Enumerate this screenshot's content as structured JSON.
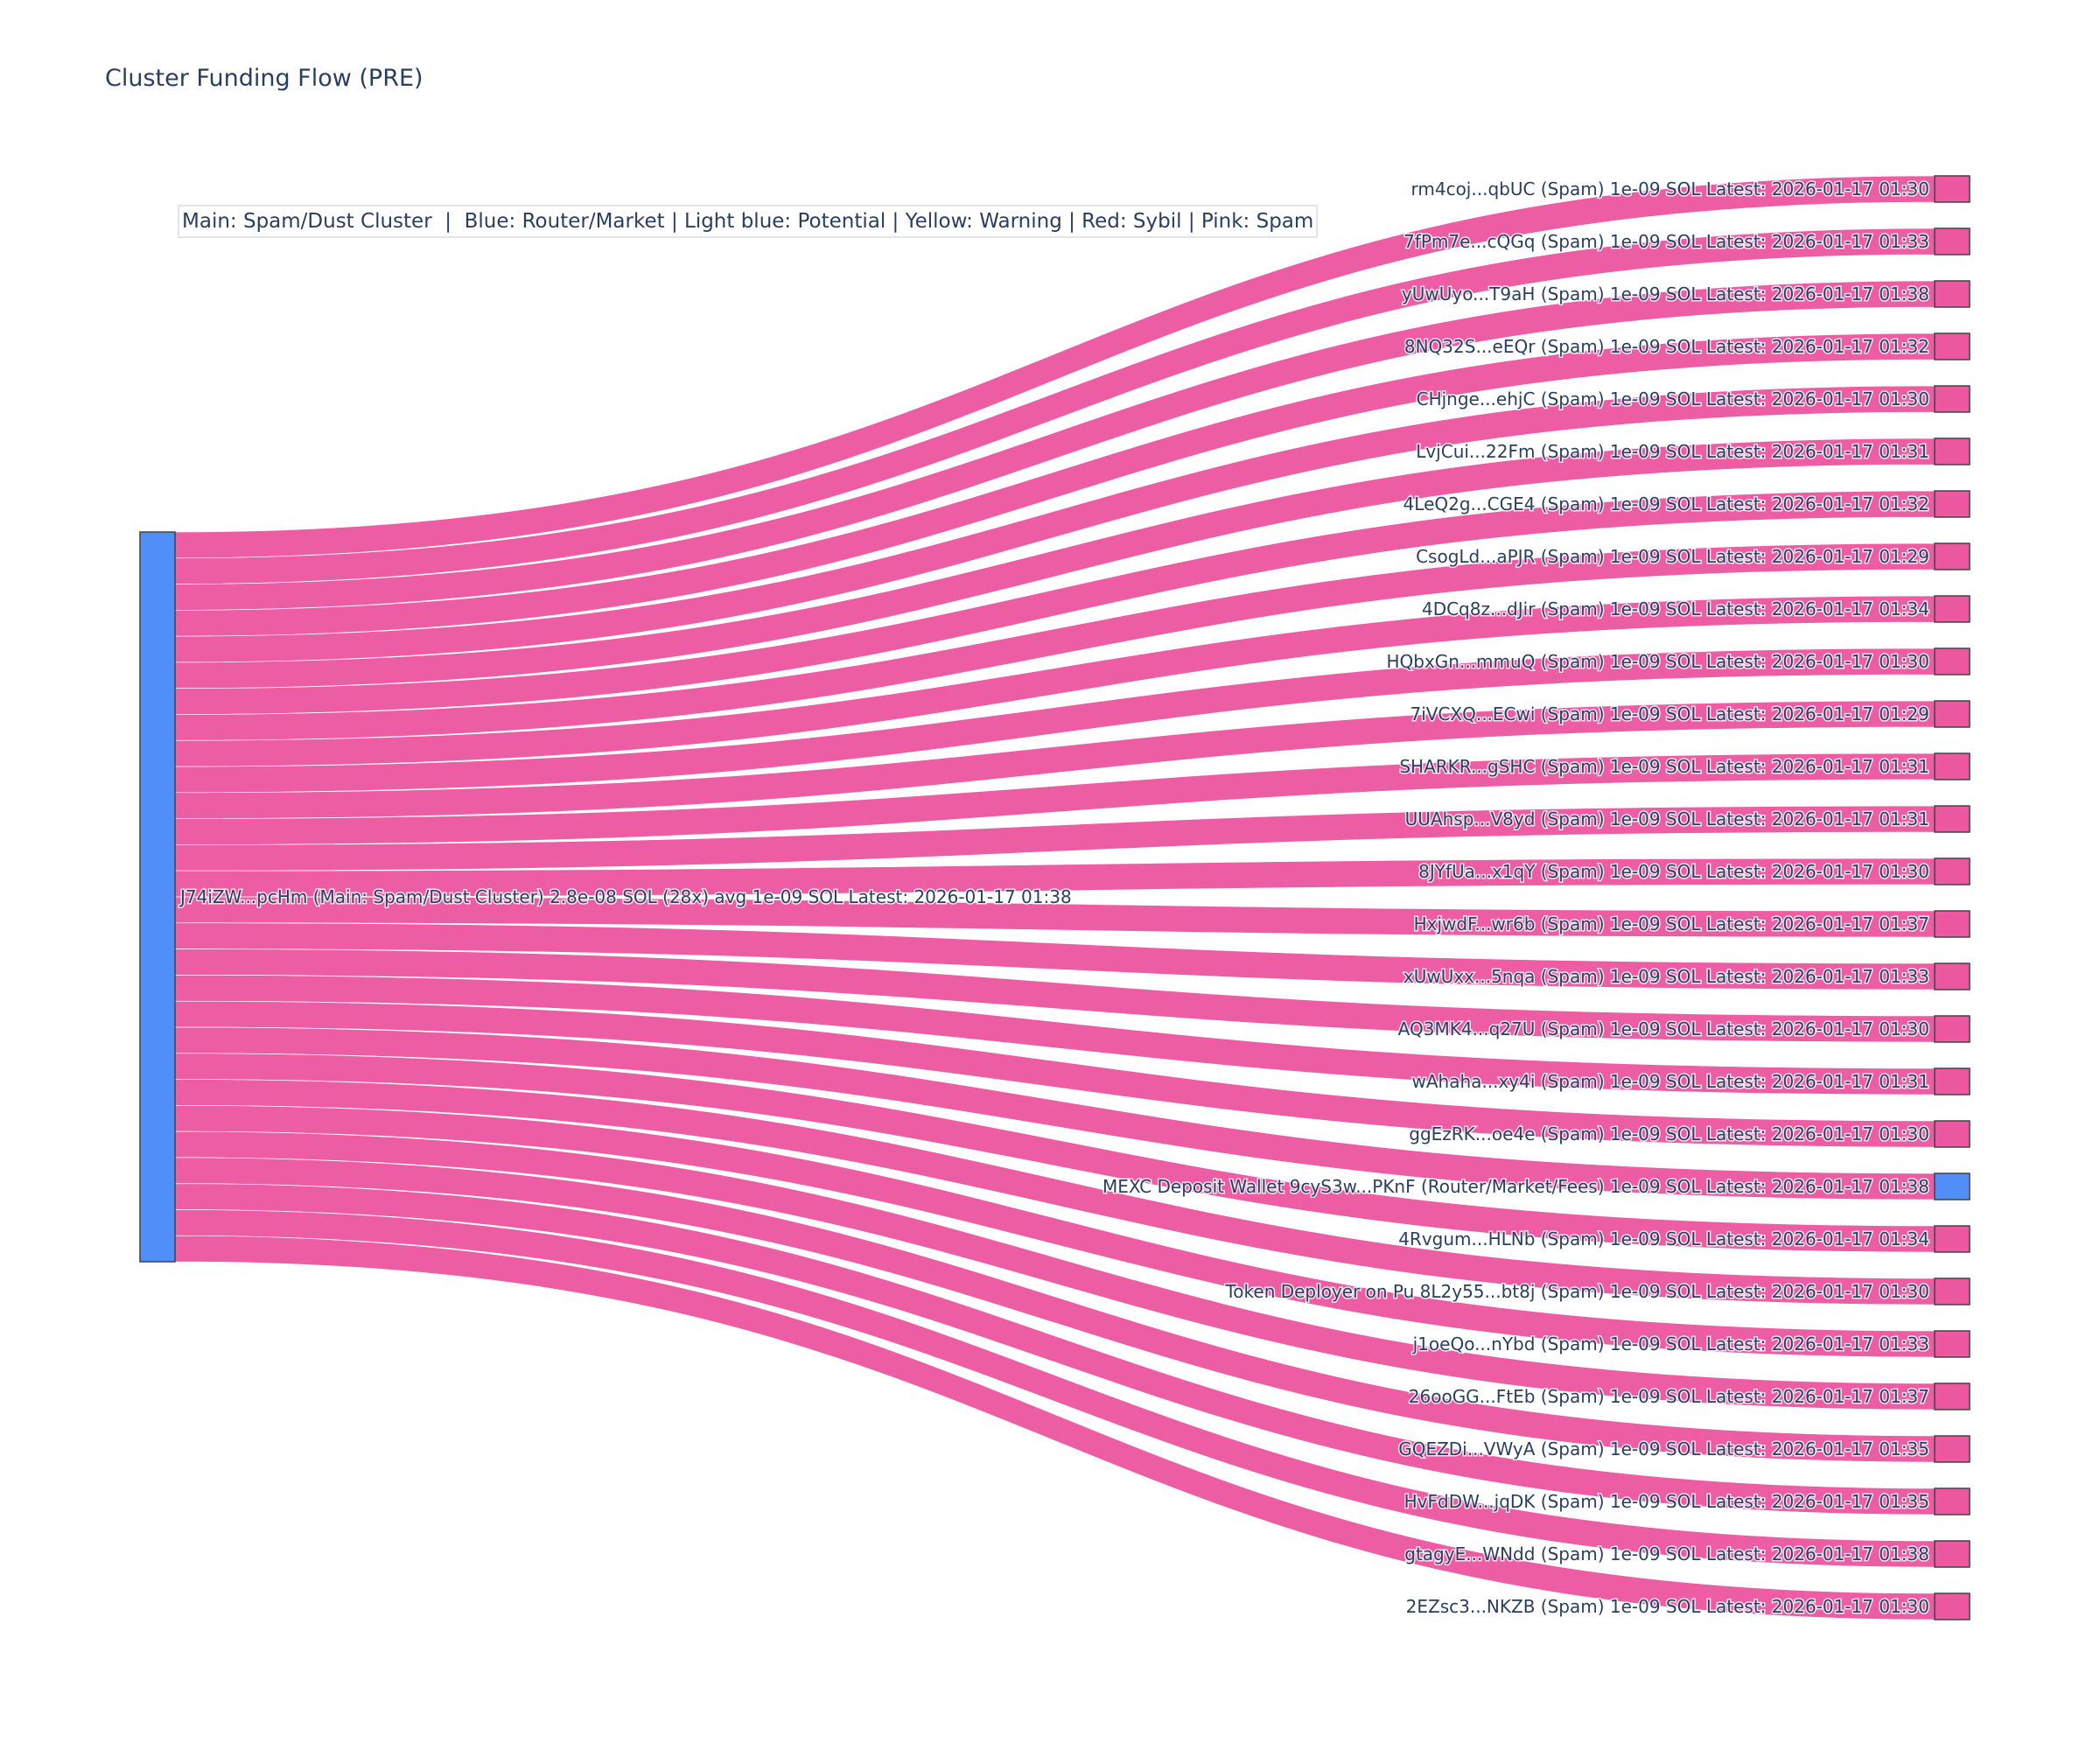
{
  "title": "Cluster Funding Flow (PRE)",
  "legend_text": "Main: Spam/Dust Cluster  |  Blue: Router/Market | Light blue: Potential | Yellow: Warning | Red: Sybil | Pink: Spam",
  "colors": {
    "main": "#4f8ff7",
    "router": "#4f8ff7",
    "spam": "#ec58a0",
    "link": "#ec58a0",
    "text": "#2a3f5f"
  },
  "chart_data": {
    "type": "sankey",
    "title": "Cluster Funding Flow (PRE)",
    "source": {
      "label": "J74iZW...pcHm (Main: Spam/Dust Cluster) 2.8e-08 SOL (28x) avg 1e-09 SOL Latest: 2026-01-17 01:38",
      "category": "main",
      "value": 2.8e-08
    },
    "targets": [
      {
        "label": "rm4coj...qbUC (Spam) 1e-09 SOL Latest: 2026-01-17 01:30",
        "category": "spam",
        "value": 1e-09
      },
      {
        "label": "7fPm7e...cQGq (Spam) 1e-09 SOL Latest: 2026-01-17 01:33",
        "category": "spam",
        "value": 1e-09
      },
      {
        "label": "yUwUyo...T9aH (Spam) 1e-09 SOL Latest: 2026-01-17 01:38",
        "category": "spam",
        "value": 1e-09
      },
      {
        "label": "8NQ32S...eEQr (Spam) 1e-09 SOL Latest: 2026-01-17 01:32",
        "category": "spam",
        "value": 1e-09
      },
      {
        "label": "CHjnge...ehjC (Spam) 1e-09 SOL Latest: 2026-01-17 01:30",
        "category": "spam",
        "value": 1e-09
      },
      {
        "label": "LvjCui...22Fm (Spam) 1e-09 SOL Latest: 2026-01-17 01:31",
        "category": "spam",
        "value": 1e-09
      },
      {
        "label": "4LeQ2g...CGE4 (Spam) 1e-09 SOL Latest: 2026-01-17 01:32",
        "category": "spam",
        "value": 1e-09
      },
      {
        "label": "CsogLd...aPJR (Spam) 1e-09 SOL Latest: 2026-01-17 01:29",
        "category": "spam",
        "value": 1e-09
      },
      {
        "label": "4DCq8z...dJir (Spam) 1e-09 SOL Latest: 2026-01-17 01:34",
        "category": "spam",
        "value": 1e-09
      },
      {
        "label": "HQbxGn...mmuQ (Spam) 1e-09 SOL Latest: 2026-01-17 01:30",
        "category": "spam",
        "value": 1e-09
      },
      {
        "label": "7iVCXQ...ECwi (Spam) 1e-09 SOL Latest: 2026-01-17 01:29",
        "category": "spam",
        "value": 1e-09
      },
      {
        "label": "SHARKR...gSHC (Spam) 1e-09 SOL Latest: 2026-01-17 01:31",
        "category": "spam",
        "value": 1e-09
      },
      {
        "label": "UUAhsp...V8yd (Spam) 1e-09 SOL Latest: 2026-01-17 01:31",
        "category": "spam",
        "value": 1e-09
      },
      {
        "label": "8JYfUa...x1qY (Spam) 1e-09 SOL Latest: 2026-01-17 01:30",
        "category": "spam",
        "value": 1e-09
      },
      {
        "label": "HxjwdF...wr6b (Spam) 1e-09 SOL Latest: 2026-01-17 01:37",
        "category": "spam",
        "value": 1e-09
      },
      {
        "label": "xUwUxx...5nqa (Spam) 1e-09 SOL Latest: 2026-01-17 01:33",
        "category": "spam",
        "value": 1e-09
      },
      {
        "label": "AQ3MK4...q27U (Spam) 1e-09 SOL Latest: 2026-01-17 01:30",
        "category": "spam",
        "value": 1e-09
      },
      {
        "label": "wAhaha...xy4i (Spam) 1e-09 SOL Latest: 2026-01-17 01:31",
        "category": "spam",
        "value": 1e-09
      },
      {
        "label": "ggEzRK...oe4e (Spam) 1e-09 SOL Latest: 2026-01-17 01:30",
        "category": "spam",
        "value": 1e-09
      },
      {
        "label": "MEXC Deposit Wallet 9cyS3w...PKnF (Router/Market/Fees) 1e-09 SOL Latest: 2026-01-17 01:38",
        "category": "router",
        "value": 1e-09
      },
      {
        "label": "4Rvgum...HLNb (Spam) 1e-09 SOL Latest: 2026-01-17 01:34",
        "category": "spam",
        "value": 1e-09
      },
      {
        "label": "Token Deployer on Pu 8L2y55...bt8j (Spam) 1e-09 SOL Latest: 2026-01-17 01:30",
        "category": "spam",
        "value": 1e-09
      },
      {
        "label": "j1oeQo...nYbd (Spam) 1e-09 SOL Latest: 2026-01-17 01:33",
        "category": "spam",
        "value": 1e-09
      },
      {
        "label": "26ooGG...FtEb (Spam) 1e-09 SOL Latest: 2026-01-17 01:37",
        "category": "spam",
        "value": 1e-09
      },
      {
        "label": "GQEZDi...VWyA (Spam) 1e-09 SOL Latest: 2026-01-17 01:35",
        "category": "spam",
        "value": 1e-09
      },
      {
        "label": "HvFdDW...jqDK (Spam) 1e-09 SOL Latest: 2026-01-17 01:35",
        "category": "spam",
        "value": 1e-09
      },
      {
        "label": "gtagyE...WNdd (Spam) 1e-09 SOL Latest: 2026-01-17 01:38",
        "category": "spam",
        "value": 1e-09
      },
      {
        "label": "2EZsc3...NKZB (Spam) 1e-09 SOL Latest: 2026-01-17 01:30",
        "category": "spam",
        "value": 1e-09
      }
    ]
  }
}
